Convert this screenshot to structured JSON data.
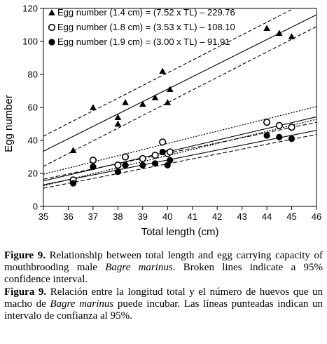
{
  "chart_data": {
    "type": "scatter",
    "title": "",
    "xlabel": "Total length (cm)",
    "ylabel": "Egg number",
    "xlim": [
      35,
      46
    ],
    "ylim": [
      0,
      120
    ],
    "xticks": [
      "35",
      "36",
      "37",
      "38",
      "39",
      "40",
      "41",
      "42",
      "43",
      "44",
      "45",
      "46"
    ],
    "yticks": [
      "0",
      "20",
      "40",
      "60",
      "80",
      "100",
      "120"
    ],
    "grid": false,
    "legend_position": "top-left",
    "series": [
      {
        "name": "Egg number (1.4 cm) = (7.52 x TL) – 229.76",
        "marker": "triangle",
        "slope": 7.52,
        "intercept": -229.76,
        "ci_lines": [
          {
            "x": [
              35,
              46
            ],
            "y": [
              42.6,
              127.0
            ]
          },
          {
            "x": [
              35,
              46
            ],
            "y": [
              24.3,
              109.0
            ]
          }
        ],
        "points": [
          {
            "x": 36.2,
            "y": 34
          },
          {
            "x": 37.0,
            "y": 60
          },
          {
            "x": 38.0,
            "y": 50
          },
          {
            "x": 38.0,
            "y": 54
          },
          {
            "x": 38.3,
            "y": 63
          },
          {
            "x": 39.0,
            "y": 62
          },
          {
            "x": 39.5,
            "y": 66
          },
          {
            "x": 39.8,
            "y": 82
          },
          {
            "x": 40.0,
            "y": 63
          },
          {
            "x": 40.1,
            "y": 71
          },
          {
            "x": 44.0,
            "y": 108
          },
          {
            "x": 44.5,
            "y": 105
          },
          {
            "x": 45.0,
            "y": 103
          }
        ]
      },
      {
        "name": "Egg number (1.8 cm) = (3.53 x TL) – 108.10",
        "marker": "open-circle",
        "slope": 3.53,
        "intercept": -108.1,
        "ci_lines": [
          {
            "x": [
              35,
              46
            ],
            "y": [
              19.5,
              60.5
            ]
          },
          {
            "x": [
              35,
              46
            ],
            "y": [
              12.5,
              52.8
            ]
          }
        ],
        "points": [
          {
            "x": 36.2,
            "y": 16
          },
          {
            "x": 37.0,
            "y": 28
          },
          {
            "x": 38.0,
            "y": 25
          },
          {
            "x": 38.3,
            "y": 30
          },
          {
            "x": 39.0,
            "y": 29
          },
          {
            "x": 39.5,
            "y": 31
          },
          {
            "x": 39.8,
            "y": 39
          },
          {
            "x": 40.0,
            "y": 32
          },
          {
            "x": 40.1,
            "y": 33
          },
          {
            "x": 44.0,
            "y": 51
          },
          {
            "x": 44.5,
            "y": 49
          },
          {
            "x": 45.0,
            "y": 48
          }
        ]
      },
      {
        "name": "Egg number (1.9 cm) = (3.00 x TL) – 91.91",
        "marker": "filled-circle",
        "slope": 3.0,
        "intercept": -91.91,
        "ci_lines": [
          {
            "x": [
              35,
              46
            ],
            "y": [
              16.5,
              51.0
            ]
          },
          {
            "x": [
              35,
              46
            ],
            "y": [
              11.0,
              43.6
            ]
          }
        ],
        "points": [
          {
            "x": 36.2,
            "y": 14
          },
          {
            "x": 37.0,
            "y": 24
          },
          {
            "x": 38.0,
            "y": 21
          },
          {
            "x": 38.3,
            "y": 25
          },
          {
            "x": 39.0,
            "y": 25
          },
          {
            "x": 39.5,
            "y": 26
          },
          {
            "x": 39.8,
            "y": 33
          },
          {
            "x": 40.0,
            "y": 25
          },
          {
            "x": 40.1,
            "y": 28
          },
          {
            "x": 44.0,
            "y": 43
          },
          {
            "x": 44.5,
            "y": 42
          },
          {
            "x": 45.0,
            "y": 41
          }
        ]
      }
    ]
  },
  "caption_en": {
    "label": "Figure 9.",
    "text_1": " Relationship between total length and egg carrying capacity of mouthbrooding male ",
    "species": "Bagre marinus",
    "text_2": ". Broken lines indicate a 95% confidence interval."
  },
  "caption_es": {
    "label": "Figura 9.",
    "text_1": " Relación entre la longitud total y el número de huevos que un macho de ",
    "species": "Bagre marinus",
    "text_2": " puede incubar. Las líneas punteadas indican un intervalo de confianza al 95%."
  }
}
